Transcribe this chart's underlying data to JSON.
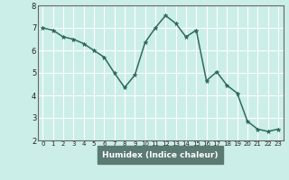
{
  "title": "",
  "xlabel": "Humidex (Indice chaleur)",
  "ylabel": "",
  "x": [
    0,
    1,
    2,
    3,
    4,
    5,
    6,
    7,
    8,
    9,
    10,
    11,
    12,
    13,
    14,
    15,
    16,
    17,
    18,
    19,
    20,
    21,
    22,
    23
  ],
  "y": [
    7.0,
    6.9,
    6.6,
    6.5,
    6.3,
    6.0,
    5.7,
    5.0,
    4.35,
    4.9,
    6.35,
    7.0,
    7.55,
    7.2,
    6.6,
    6.9,
    4.65,
    5.05,
    4.45,
    4.1,
    2.85,
    2.5,
    2.4,
    2.5
  ],
  "line_color": "#2e6b5e",
  "marker": "*",
  "marker_size": 3.5,
  "bg_color": "#cceee8",
  "plot_bg_color": "#cceee8",
  "xlabel_bg": "#5a7a72",
  "grid_color": "#ffffff",
  "axis_color": "#666666",
  "xlim": [
    -0.5,
    23.5
  ],
  "ylim": [
    2.0,
    8.0
  ],
  "yticks": [
    2,
    3,
    4,
    5,
    6,
    7,
    8
  ],
  "xticks": [
    0,
    1,
    2,
    3,
    4,
    5,
    6,
    7,
    8,
    9,
    10,
    11,
    12,
    13,
    14,
    15,
    16,
    17,
    18,
    19,
    20,
    21,
    22,
    23
  ]
}
